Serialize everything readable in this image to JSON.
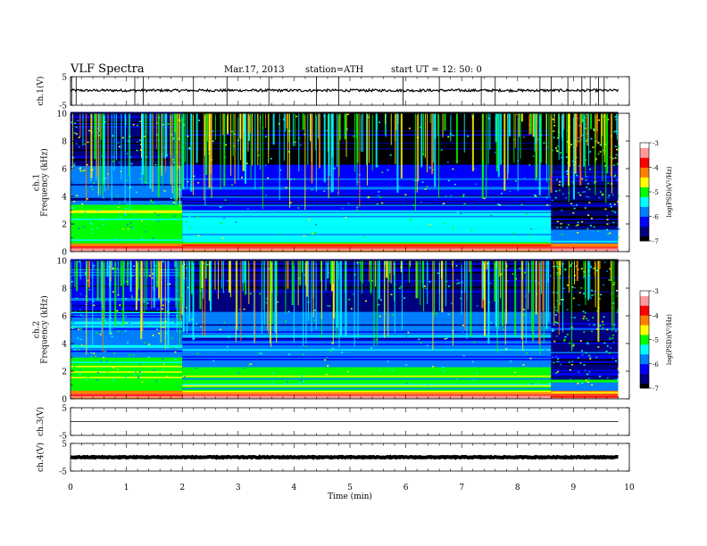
{
  "header": {
    "title": "VLF Spectra",
    "date": "Mar.17, 2013",
    "station": "station=ATH",
    "start": "start  UT =   12: 50: 0"
  },
  "chart_data": [
    {
      "type": "line",
      "name": "ch1-waveform",
      "ylabel": "ch.1(V)",
      "ylim": [
        -5,
        5
      ],
      "yticks": [
        5,
        -5
      ],
      "xlim": [
        0,
        10
      ],
      "baseline": 0.2,
      "spike_times": [
        0.02,
        0.1,
        1.15,
        1.3,
        2.2,
        2.8,
        3.55,
        4.4,
        4.8,
        5.95,
        6.6,
        7.35,
        7.6,
        8.4,
        8.6,
        8.9,
        9.15,
        9.3,
        9.45,
        9.55
      ]
    },
    {
      "type": "heatmap",
      "name": "ch1-spectrogram",
      "ylabel": "ch.1\nFrequency  (kHz)",
      "ylim": [
        0,
        10
      ],
      "yticks": [
        0,
        2,
        4,
        6,
        8,
        10
      ],
      "xlim": [
        0,
        10
      ],
      "colorbar": {
        "label": "log(PSD)(V²/Hz)",
        "ticks": [
          -3,
          -4,
          -5,
          -6,
          -7
        ],
        "range": [
          -7,
          -3
        ]
      },
      "segments": [
        {
          "t_start": 0.0,
          "t_end": 2.0,
          "noise_top_khz": 3.4,
          "level": -5.6
        },
        {
          "t_start": 2.0,
          "t_end": 8.6,
          "noise_top_khz": 3.0,
          "level": -5.9
        },
        {
          "t_start": 8.6,
          "t_end": 9.8,
          "noise_top_khz": 1.6,
          "level": -6.3
        }
      ]
    },
    {
      "type": "heatmap",
      "name": "ch2-spectrogram",
      "ylabel": "ch.2\nFrequency  (kHz)",
      "ylim": [
        0,
        10
      ],
      "yticks": [
        0,
        2,
        4,
        6,
        8,
        10
      ],
      "xlim": [
        0,
        10
      ],
      "colorbar": {
        "label": "log(PSD)(V²/Hz)",
        "ticks": [
          -3,
          -4,
          -5,
          -6,
          -7
        ],
        "range": [
          -7,
          -3
        ]
      },
      "segments": [
        {
          "t_start": 0.0,
          "t_end": 2.0,
          "noise_top_khz": 3.0,
          "level": -5.3
        },
        {
          "t_start": 2.0,
          "t_end": 8.6,
          "noise_top_khz": 2.4,
          "level": -5.6
        },
        {
          "t_start": 8.6,
          "t_end": 9.8,
          "noise_top_khz": 1.4,
          "level": -6.1
        }
      ]
    },
    {
      "type": "line",
      "name": "ch3-waveform",
      "ylabel": "ch.3(V)",
      "ylim": [
        -5,
        5
      ],
      "yticks": [
        5,
        -5
      ],
      "xlim": [
        0,
        10
      ],
      "baseline": 0.0
    },
    {
      "type": "line",
      "name": "ch4-waveform",
      "ylabel": "ch.4(V)",
      "ylim": [
        -5,
        5
      ],
      "yticks": [
        5,
        -5
      ],
      "xlim": [
        0,
        10
      ],
      "baseline": 0.0
    }
  ],
  "time_axis": {
    "label": "Time  (min)",
    "ticks": [
      "0",
      "1",
      "2",
      "3",
      "4",
      "5",
      "6",
      "7",
      "8",
      "9",
      "10"
    ],
    "data_end_min": 9.8
  },
  "colors": {
    "colormap": [
      "#000000",
      "#00007f",
      "#0000ff",
      "#0080ff",
      "#00ffff",
      "#00ff00",
      "#ffff00",
      "#ff8000",
      "#ff0000",
      "#ff9999",
      "#ffffff"
    ]
  }
}
